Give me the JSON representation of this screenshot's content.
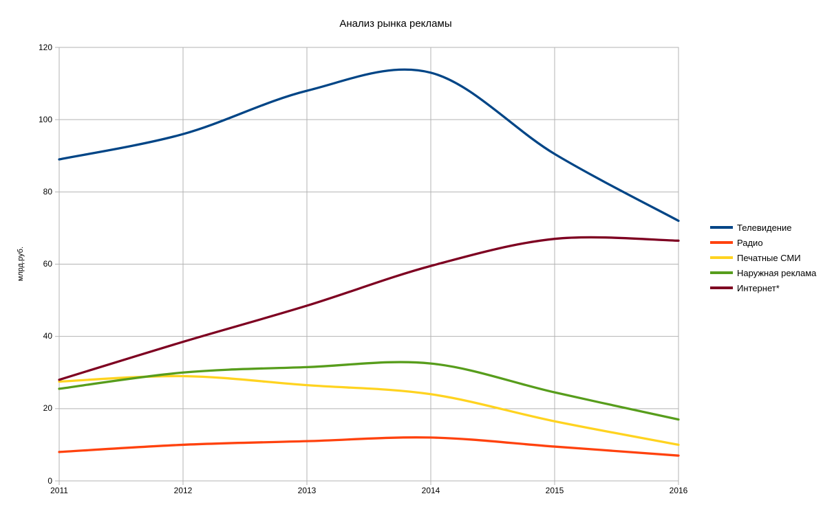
{
  "chart_data": {
    "type": "line",
    "title": "Анализ рынка рекламы",
    "ylabel": "млрд.руб.",
    "x": [
      2011,
      2012,
      2013,
      2014,
      2015,
      2016
    ],
    "x_tick_labels": [
      "2011",
      "2012",
      "2013",
      "2014",
      "2015",
      "2016"
    ],
    "y_ticks": [
      0,
      20,
      40,
      60,
      80,
      100,
      120
    ],
    "ylim": [
      0,
      120
    ],
    "grid": true,
    "smooth_lines": true,
    "legend_position": "right",
    "series": [
      {
        "name": "Телевидение",
        "color": "#004586",
        "values": [
          89,
          96,
          108,
          113,
          90.5,
          72
        ]
      },
      {
        "name": "Радио",
        "color": "#ff420e",
        "values": [
          8,
          10,
          11,
          12,
          9.5,
          7
        ]
      },
      {
        "name": "Печатные СМИ",
        "color": "#ffd320",
        "values": [
          27.5,
          29,
          26.5,
          24,
          16.5,
          10
        ]
      },
      {
        "name": "Наружная реклама",
        "color": "#579d1c",
        "values": [
          25.5,
          30,
          31.5,
          32.5,
          24.5,
          17
        ]
      },
      {
        "name": "Интернет*",
        "color": "#7e0021",
        "values": [
          28,
          38.5,
          48.5,
          59.5,
          67,
          66.5
        ]
      }
    ],
    "colors": {
      "grid": "#b3b3b3",
      "axis": "#b3b3b3",
      "text": "#000000",
      "background": "#ffffff"
    }
  }
}
